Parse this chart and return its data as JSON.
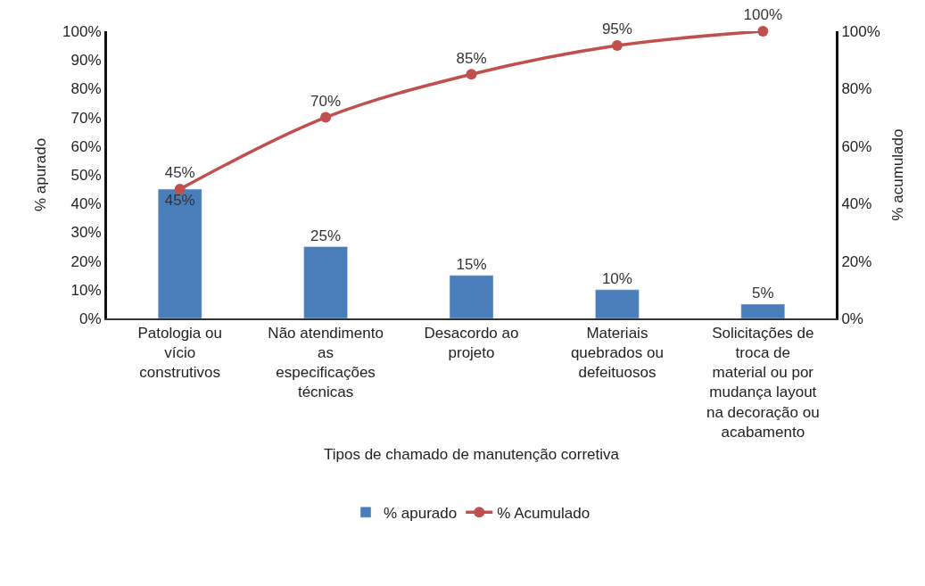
{
  "chart_data": {
    "type": "bar",
    "categories": [
      "Patologia ou vício construtivos",
      "Não atendimento as especificações técnicas",
      "Desacordo ao projeto",
      "Materiais quebrados ou defeituosos",
      "Solicitações de troca de material ou por mudança layout na decoração ou acabamento"
    ],
    "xlabel": "Tipos de chamado de manutenção corretiva",
    "ylabel": "% apurado",
    "y2label": "% acumulado",
    "series": [
      {
        "name": "% apurado",
        "color": "#4a7ebb",
        "values": [
          45,
          25,
          15,
          10,
          5
        ],
        "value_labels": [
          "45%",
          "25%",
          "15%",
          "10%",
          "5%"
        ]
      },
      {
        "name": "% Acumulado",
        "type": "line",
        "axis": "y2",
        "color": "#c0504d",
        "marker": "circle",
        "values": [
          45,
          70,
          85,
          95,
          100
        ],
        "value_labels": [
          "45%",
          "70%",
          "85%",
          "95%",
          "100%"
        ]
      }
    ],
    "ylim": [
      0,
      100
    ],
    "yticks": [
      {
        "value": 0,
        "label": "0%"
      },
      {
        "value": 10,
        "label": "10%"
      },
      {
        "value": 20,
        "label": "20%"
      },
      {
        "value": 30,
        "label": "30%"
      },
      {
        "value": 40,
        "label": "40%"
      },
      {
        "value": 50,
        "label": "50%"
      },
      {
        "value": 60,
        "label": "60%"
      },
      {
        "value": 70,
        "label": "70%"
      },
      {
        "value": 80,
        "label": "80%"
      },
      {
        "value": 90,
        "label": "90%"
      },
      {
        "value": 100,
        "label": "100%"
      }
    ],
    "y2lim": [
      0,
      100
    ],
    "y2ticks": [
      {
        "value": 0,
        "label": "0%"
      },
      {
        "value": 20,
        "label": "20%"
      },
      {
        "value": 40,
        "label": "40%"
      },
      {
        "value": 60,
        "label": "60%"
      },
      {
        "value": 80,
        "label": "80%"
      },
      {
        "value": 100,
        "label": "100%"
      }
    ],
    "legend": "bottom"
  }
}
